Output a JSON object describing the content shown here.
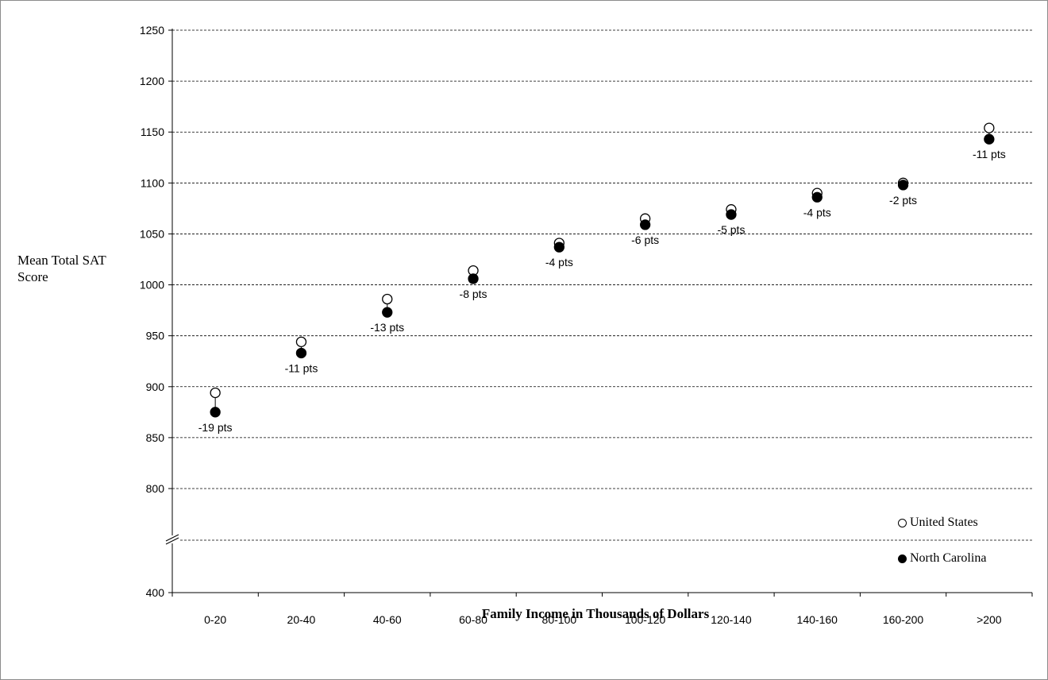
{
  "chart_data": {
    "type": "scatter",
    "title": "",
    "xlabel": "Family Income in Thousands of Dollars",
    "ylabel": "Mean Total SAT Score",
    "categories": [
      "0-20",
      "20-40",
      "40-60",
      "60-80",
      "80-100",
      "100-120",
      "120-140",
      "140-160",
      "160-200",
      ">200"
    ],
    "y_ticks": [
      400,
      800,
      850,
      900,
      950,
      1000,
      1050,
      1100,
      1150,
      1200,
      1250
    ],
    "ylim": [
      400,
      1250
    ],
    "axis_break": "between 400 and 800",
    "grid": true,
    "series": [
      {
        "name": "United States",
        "marker": "open-circle",
        "values": [
          894,
          944,
          986,
          1014,
          1041,
          1065,
          1074,
          1090,
          1100,
          1154
        ]
      },
      {
        "name": "North Carolina",
        "marker": "filled-circle",
        "values": [
          875,
          933,
          973,
          1006,
          1037,
          1059,
          1069,
          1086,
          1098,
          1143
        ]
      }
    ],
    "annotations": [
      "-19 pts",
      "-11 pts",
      "-13 pts",
      "-8 pts",
      "-4 pts",
      "-6 pts",
      "-5 pts",
      "-4 pts",
      "-2 pts",
      "-11 pts"
    ],
    "legend_position": "bottom-right"
  }
}
